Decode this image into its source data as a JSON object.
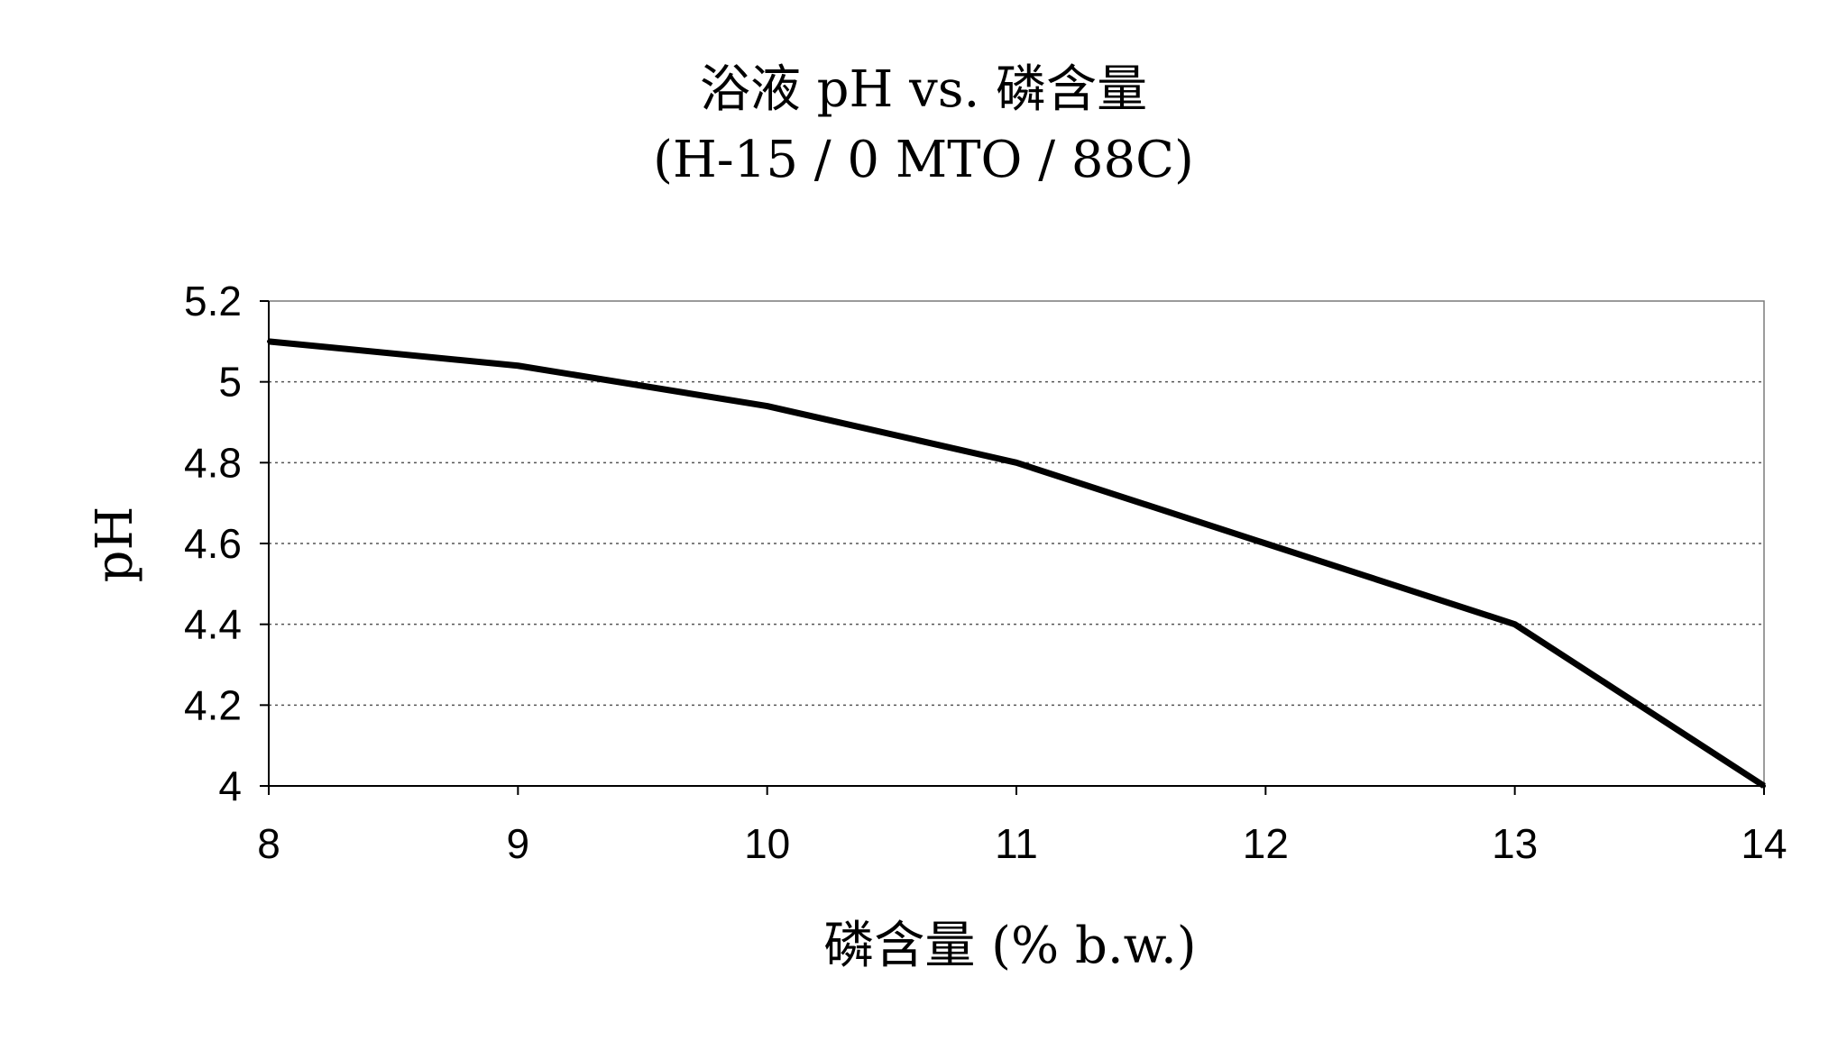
{
  "chart_data": {
    "type": "line",
    "title": "浴液 pH vs. 磷含量",
    "subtitle": "(H-15 / 0 MTO / 88C)",
    "xlabel": "磷含量 (% b.w.)",
    "ylabel": "pH",
    "x": [
      8,
      9,
      10,
      11,
      12,
      13,
      14
    ],
    "series": [
      {
        "values": [
          5.1,
          5.04,
          4.94,
          4.8,
          4.6,
          4.4,
          4.0
        ]
      }
    ],
    "xlim": [
      8,
      14
    ],
    "ylim": [
      4,
      5.2
    ],
    "xticks": [
      "8",
      "9",
      "10",
      "11",
      "12",
      "13",
      "14"
    ],
    "yticks": [
      "4",
      "4.2",
      "4.4",
      "4.6",
      "4.8",
      "5",
      "5.2"
    ],
    "grid": "horizontal dotted",
    "legend": "none",
    "colors": {
      "line": "#000000",
      "grid": "#555555",
      "frame": "#7a7a7a"
    }
  }
}
